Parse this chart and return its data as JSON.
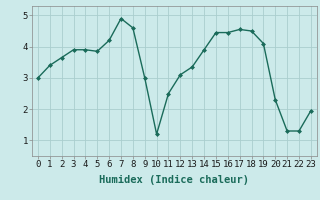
{
  "x": [
    0,
    1,
    2,
    3,
    4,
    5,
    6,
    7,
    8,
    9,
    10,
    11,
    12,
    13,
    14,
    15,
    16,
    17,
    18,
    19,
    20,
    21,
    22,
    23
  ],
  "y": [
    3.0,
    3.4,
    3.65,
    3.9,
    3.9,
    3.85,
    4.2,
    4.9,
    4.6,
    3.0,
    1.2,
    2.5,
    3.1,
    3.35,
    3.9,
    4.45,
    4.45,
    4.55,
    4.5,
    4.1,
    2.3,
    1.3,
    1.3,
    1.95
  ],
  "line_color": "#1a6b5a",
  "marker": "D",
  "marker_size": 2,
  "background_color": "#cceaea",
  "grid_color": "#aacece",
  "xlabel": "Humidex (Indice chaleur)",
  "xlim": [
    -0.5,
    23.5
  ],
  "ylim": [
    0.5,
    5.3
  ],
  "yticks": [
    1,
    2,
    3,
    4,
    5
  ],
  "xticks": [
    0,
    1,
    2,
    3,
    4,
    5,
    6,
    7,
    8,
    9,
    10,
    11,
    12,
    13,
    14,
    15,
    16,
    17,
    18,
    19,
    20,
    21,
    22,
    23
  ],
  "xlabel_fontsize": 7.5,
  "tick_fontsize": 6.5,
  "linewidth": 1.0
}
